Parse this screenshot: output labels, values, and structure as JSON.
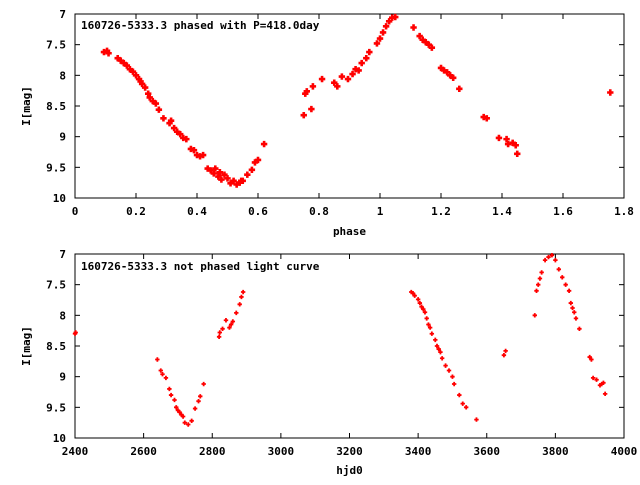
{
  "colors": {
    "points": "#ff0000",
    "frame": "#000000",
    "background": "#ffffff"
  },
  "chart_data": [
    {
      "type": "scatter",
      "title": "160726-5333.3 phased with P=418.0day",
      "xlabel": "phase",
      "ylabel": "I[mag]",
      "xlim": [
        0,
        1.8
      ],
      "ylim": [
        7,
        10
      ],
      "y_inverted": true,
      "grid": false,
      "x_ticks": [
        0,
        0.2,
        0.4,
        0.6,
        0.8,
        1,
        1.2,
        1.4,
        1.6,
        1.8
      ],
      "x_tick_labels": [
        "0",
        "0.2",
        "0.4",
        "0.6",
        "0.8",
        "1",
        "1.2",
        "1.4",
        "1.6",
        "1.8"
      ],
      "y_ticks": [
        7,
        7.5,
        8,
        8.5,
        9,
        9.5,
        10
      ],
      "y_tick_labels": [
        "7",
        "7.5",
        "8",
        "8.5",
        "9",
        "9.5",
        "10"
      ],
      "marker": "plus",
      "series": [
        {
          "x": [
            0.095,
            0.105,
            0.11,
            0.14,
            0.15,
            0.16,
            0.17,
            0.18,
            0.19,
            0.2,
            0.21,
            0.215,
            0.22,
            0.23,
            0.24,
            0.245,
            0.255,
            0.265,
            0.275,
            0.29,
            0.31,
            0.315,
            0.325,
            0.335,
            0.345,
            0.355,
            0.365,
            0.38,
            0.39,
            0.4,
            0.41,
            0.42,
            0.435,
            0.445,
            0.455,
            0.46,
            0.47,
            0.475,
            0.48,
            0.49,
            0.5,
            0.51,
            0.52,
            0.53,
            0.54,
            0.545,
            0.55,
            0.565,
            0.58,
            0.59,
            0.6,
            0.62,
            0.75,
            0.755,
            0.76,
            0.775,
            0.78,
            0.81,
            0.85,
            0.86,
            0.875,
            0.895,
            0.91,
            0.92,
            0.93,
            0.94,
            0.955,
            0.965,
            0.99,
            1.0,
            1.01,
            1.02,
            1.03,
            1.04,
            1.05,
            1.11,
            1.13,
            1.14,
            1.15,
            1.16,
            1.17,
            1.2,
            1.21,
            1.22,
            1.23,
            1.24,
            1.26,
            1.34,
            1.35,
            1.39,
            1.415,
            1.42,
            1.435,
            1.445,
            1.45,
            1.755
          ],
          "y": [
            7.62,
            7.6,
            7.64,
            7.72,
            7.76,
            7.8,
            7.84,
            7.9,
            7.94,
            8.0,
            8.06,
            8.1,
            8.14,
            8.2,
            8.3,
            8.36,
            8.42,
            8.46,
            8.56,
            8.7,
            8.78,
            8.74,
            8.86,
            8.92,
            8.96,
            9.02,
            9.04,
            9.2,
            9.22,
            9.3,
            9.32,
            9.3,
            9.52,
            9.55,
            9.6,
            9.52,
            9.65,
            9.58,
            9.7,
            9.62,
            9.68,
            9.76,
            9.72,
            9.78,
            9.75,
            9.72,
            9.72,
            9.62,
            9.54,
            9.42,
            9.38,
            9.12,
            8.65,
            8.3,
            8.26,
            8.55,
            8.18,
            8.06,
            8.12,
            8.18,
            8.02,
            8.06,
            7.98,
            7.9,
            7.92,
            7.8,
            7.72,
            7.62,
            7.48,
            7.4,
            7.3,
            7.2,
            7.12,
            7.06,
            7.05,
            7.22,
            7.36,
            7.42,
            7.46,
            7.5,
            7.55,
            7.88,
            7.92,
            7.95,
            8.0,
            8.04,
            8.22,
            8.68,
            8.7,
            9.02,
            9.04,
            9.12,
            9.1,
            9.14,
            9.28,
            8.28
          ]
        }
      ]
    },
    {
      "type": "scatter",
      "title": "160726-5333.3 not phased light curve",
      "xlabel": "hjd0",
      "ylabel": "I[mag]",
      "xlim": [
        2400,
        4000
      ],
      "ylim": [
        7,
        10
      ],
      "y_inverted": true,
      "grid": false,
      "x_ticks": [
        2400,
        2600,
        2800,
        3000,
        3200,
        3400,
        3600,
        3800,
        4000
      ],
      "x_tick_labels": [
        "2400",
        "2600",
        "2800",
        "3000",
        "3200",
        "3400",
        "3600",
        "3800",
        "4000"
      ],
      "y_ticks": [
        7,
        7.5,
        8,
        8.5,
        9,
        9.5,
        10
      ],
      "y_tick_labels": [
        "7",
        "7.5",
        "8",
        "8.5",
        "9",
        "9.5",
        "10"
      ],
      "marker": "plus",
      "series": [
        {
          "x": [
            2400,
            2402,
            2640,
            2650,
            2655,
            2665,
            2675,
            2680,
            2690,
            2695,
            2700,
            2705,
            2710,
            2715,
            2720,
            2730,
            2740,
            2750,
            2760,
            2765,
            2775,
            2820,
            2822,
            2830,
            2840,
            2850,
            2855,
            2860,
            2870,
            2880,
            2885,
            2890,
            3380,
            3385,
            3390,
            3400,
            3405,
            3410,
            3415,
            3420,
            3425,
            3430,
            3435,
            3440,
            3450,
            3455,
            3460,
            3465,
            3470,
            3480,
            3490,
            3500,
            3505,
            3520,
            3530,
            3540,
            3570,
            3650,
            3655,
            3740,
            3745,
            3750,
            3755,
            3760,
            3770,
            3780,
            3790,
            3800,
            3810,
            3820,
            3830,
            3840,
            3845,
            3850,
            3855,
            3860,
            3870,
            3900,
            3905,
            3910,
            3920,
            3930,
            3935,
            3940,
            3945
          ],
          "y": [
            8.3,
            8.28,
            8.72,
            8.9,
            8.96,
            9.02,
            9.2,
            9.3,
            9.38,
            9.5,
            9.55,
            9.58,
            9.62,
            9.65,
            9.75,
            9.78,
            9.72,
            9.52,
            9.4,
            9.32,
            9.12,
            8.35,
            8.28,
            8.22,
            8.08,
            8.2,
            8.15,
            8.1,
            7.96,
            7.82,
            7.7,
            7.62,
            7.62,
            7.64,
            7.68,
            7.74,
            7.8,
            7.86,
            7.9,
            7.95,
            8.05,
            8.15,
            8.2,
            8.3,
            8.4,
            8.5,
            8.55,
            8.6,
            8.7,
            8.82,
            8.9,
            9.0,
            9.12,
            9.3,
            9.44,
            9.5,
            9.7,
            8.65,
            8.58,
            8.0,
            7.6,
            7.5,
            7.4,
            7.3,
            7.1,
            7.05,
            7.02,
            7.1,
            7.25,
            7.38,
            7.5,
            7.6,
            7.8,
            7.88,
            7.95,
            8.05,
            8.22,
            8.68,
            8.72,
            9.02,
            9.05,
            9.14,
            9.12,
            9.1,
            9.28
          ]
        }
      ]
    }
  ]
}
